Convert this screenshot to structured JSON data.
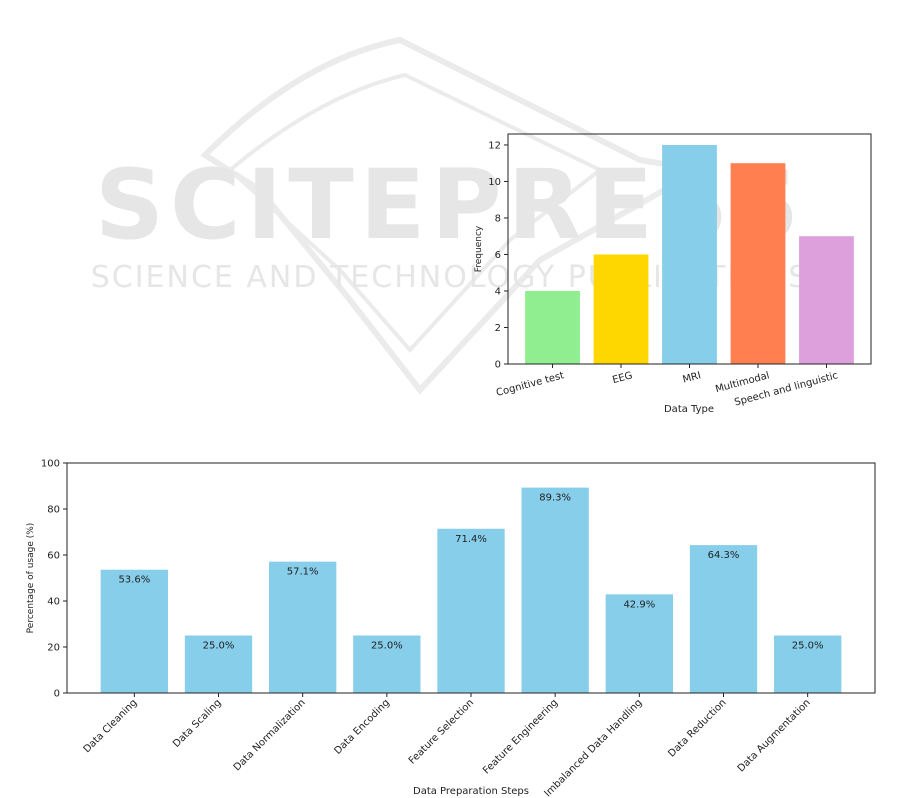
{
  "watermark": {
    "main_text": "SCITEPRESS",
    "sub_text": "SCIENCE AND TECHNOLOGY PUBLICATIONS"
  },
  "chart_data": [
    {
      "type": "bar",
      "categories": [
        "Cognitive test",
        "EEG",
        "MRI",
        "Multimodal",
        "Speech and linguistic"
      ],
      "values": [
        4,
        6,
        12,
        11,
        7
      ],
      "colors": [
        "#90ee90",
        "#ffd700",
        "#87ceeb",
        "#ff7f50",
        "#dda0dd"
      ],
      "title": "",
      "xlabel": "Data Type",
      "ylabel": "Frequency",
      "ylim": [
        0,
        12.6
      ],
      "yticks": [
        0,
        2,
        4,
        6,
        8,
        10,
        12
      ],
      "grid": false
    },
    {
      "type": "bar",
      "categories": [
        "Data Cleaning",
        "Data Scaling",
        "Data Normalization",
        "Data Encoding",
        "Feature Selection",
        "Feature Engineering",
        "Imbalanced Data Handling",
        "Data Reduction",
        "Data Augmentation"
      ],
      "values": [
        53.6,
        25.0,
        57.1,
        25.0,
        71.4,
        89.3,
        42.9,
        64.3,
        25.0
      ],
      "data_labels": [
        "53.6%",
        "25.0%",
        "57.1%",
        "25.0%",
        "71.4%",
        "89.3%",
        "42.9%",
        "64.3%",
        "25.0%"
      ],
      "color": "#87ceeb",
      "title": "",
      "xlabel": "Data Preparation Steps",
      "ylabel": "Percentage of usage (%)",
      "ylim": [
        0,
        100
      ],
      "yticks": [
        0,
        20,
        40,
        60,
        80,
        100
      ],
      "grid": false
    }
  ]
}
